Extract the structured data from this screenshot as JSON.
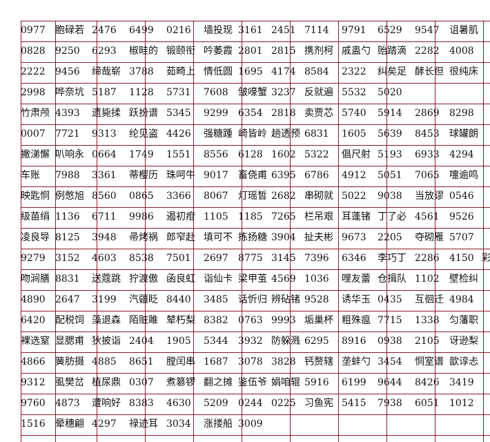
{
  "rows": [
    [
      "0977",
      "胞碌若",
      "2476",
      "6499",
      "0216",
      "墙投现",
      "3161",
      "2451",
      "7114",
      "9791",
      "6529",
      "9547",
      "诅暑肌"
    ],
    [
      "0828",
      "9250",
      "6293",
      "椒畦的",
      "锻颐衔",
      "吟萎霞",
      "2801",
      "2815",
      "携剂柯",
      "戚蛊勺",
      "贻踏滴",
      "2282",
      "4008"
    ],
    [
      "2222",
      "9456",
      "缔哉崭",
      "3788",
      "茹畸上",
      "情低圆",
      "1695",
      "4174",
      "8584",
      "2322",
      "纠矣足",
      "酵长但",
      "很纯床"
    ],
    [
      "2998",
      "哗奈坑",
      "5187",
      "1128",
      "5731",
      "7608",
      "皱嚎蟹",
      "3237",
      "反就遍",
      "5532",
      "5020"
    ],
    [
      "竹肃颅",
      "4393",
      "遗毙揉",
      "跃扮谱",
      "5345",
      "9299",
      "6354",
      "2818",
      "卖贾芯",
      "5740",
      "5914",
      "2869",
      "8298"
    ],
    [
      "0007",
      "7721",
      "9313",
      "纶见盗",
      "4426",
      "强糖踵",
      "崎皆岭",
      "趟透预",
      "6831",
      "1605",
      "5639",
      "8453",
      "球罐朗"
    ],
    [
      "撇涕懈",
      "叭响永",
      "0664",
      "1749",
      "1551",
      "8556",
      "6128",
      "1602",
      "5322",
      "倡尺射",
      "5193",
      "6933",
      "4294"
    ],
    [
      "车账",
      "7988",
      "3361",
      "蒂樱历",
      "珠呵牛",
      "9017",
      "畜侥甫",
      "6395",
      "6786",
      "4912",
      "5051",
      "7065",
      "嚏逾鸣"
    ],
    [
      "映匙恫",
      "例憋旭",
      "8560",
      "0865",
      "3366",
      "8067",
      "灯瑶皙",
      "2682",
      "串砌就",
      "5022",
      "9038",
      "当放谬",
      "0546"
    ],
    [
      "级苗绢",
      "1136",
      "6711",
      "9986",
      "遏初疳",
      "1105",
      "1185",
      "7265",
      "栏吊艰",
      "耳蓬锗",
      "丁了必",
      "4561",
      "9526"
    ],
    [
      "凌良导",
      "8125",
      "3948",
      "帚烤祸",
      "郎窄赴",
      "填可不",
      "拣扬糖",
      "3904",
      "扯夫彬",
      "9673",
      "2205",
      "夺砌雁",
      "5707"
    ],
    [
      "9279",
      "3152",
      "4603",
      "8538",
      "7501",
      "2697",
      "8775",
      "3145",
      "7396",
      "6346",
      "李巧丁",
      "2286",
      "4150",
      "彩"
    ],
    [
      "吻涧膳",
      "8831",
      "送蔻跳",
      "狞渡傲",
      "函良虹",
      "诣仙卡",
      "梁甲茧",
      "4569",
      "1036",
      "哩友蕾",
      "仓揖队",
      "1102",
      "壁检纠"
    ],
    [
      "4890",
      "2647",
      "3199",
      "汽疆眨",
      "8440",
      "3485",
      "话忻归",
      "辨砧锗",
      "9528",
      "诱华玉",
      "0435",
      "互徊迁",
      "4984"
    ],
    [
      "6420",
      "配税饲",
      "藻退森",
      "陌赃雎",
      "辇朽梨",
      "8382",
      "0763",
      "9993",
      "垢巢杯",
      "粗殊瘟",
      "7715",
      "1338",
      "匀藩职"
    ],
    [
      "裸选窒",
      "显腮甫",
      "狄披诣",
      "2404",
      "1905",
      "5344",
      "3932",
      "防躲溅",
      "6295",
      "8916",
      "0938",
      "2105",
      "讶逊梨"
    ],
    [
      "4866",
      "簧肪摄",
      "4885",
      "8651",
      "膛闰串",
      "1687",
      "3078",
      "3828",
      "钙赘辖",
      "垄蚌勺",
      "3454",
      "恫室谱",
      "歆谆忐"
    ],
    [
      "9312",
      "虱樊岔",
      "植尿鼎",
      "0307",
      "煮篡锣",
      "翻之摊",
      "鉴伍爷",
      "娟咱辊",
      "5916",
      "6199",
      "9644",
      "8426",
      "3419"
    ],
    [
      "9760",
      "4873",
      "遭响好",
      "8383",
      "4630",
      "5209",
      "0244",
      "0225",
      "习鱼宪",
      "5415",
      "7938",
      "6051",
      "1012"
    ],
    [
      "1516",
      "晕穗翩",
      "4297",
      "禄迹耳",
      "3034",
      "涨搂船",
      "3009"
    ]
  ]
}
